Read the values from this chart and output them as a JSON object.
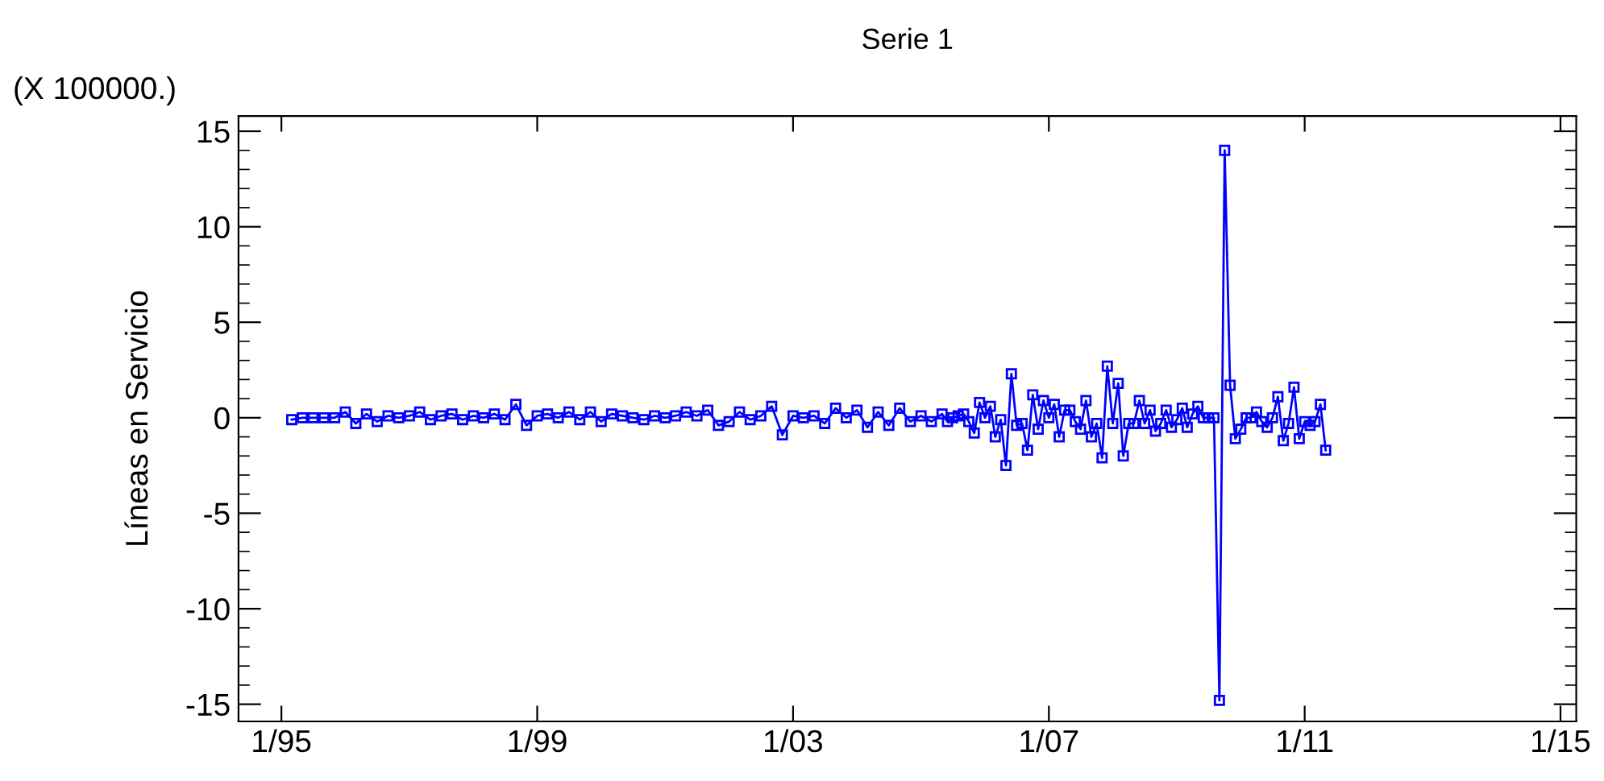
{
  "chart_data": {
    "type": "line",
    "title": "Serie 1",
    "ylabel": "Líneas en Servicio",
    "annotations": [
      "(X 100000.)"
    ],
    "x": [
      "1995-03",
      "1995-05",
      "1995-07",
      "1995-09",
      "1995-11",
      "1996-01",
      "1996-03",
      "1996-05",
      "1996-07",
      "1996-09",
      "1996-11",
      "1997-01",
      "1997-03",
      "1997-05",
      "1997-07",
      "1997-09",
      "1997-11",
      "1998-01",
      "1998-03",
      "1998-05",
      "1998-07",
      "1998-09",
      "1998-11",
      "1999-01",
      "1999-03",
      "1999-05",
      "1999-07",
      "1999-09",
      "1999-11",
      "2000-01",
      "2000-03",
      "2000-05",
      "2000-07",
      "2000-09",
      "2000-11",
      "2001-01",
      "2001-03",
      "2001-05",
      "2001-07",
      "2001-09",
      "2001-11",
      "2002-01",
      "2002-03",
      "2002-05",
      "2002-07",
      "2002-09",
      "2002-11",
      "2003-01",
      "2003-03",
      "2003-05",
      "2003-07",
      "2003-09",
      "2003-11",
      "2004-01",
      "2004-03",
      "2004-05",
      "2004-07",
      "2004-09",
      "2004-11",
      "2005-01",
      "2005-03",
      "2005-05",
      "2005-06",
      "2005-07",
      "2005-08",
      "2005-09",
      "2005-10",
      "2005-11",
      "2005-12",
      "2006-01",
      "2006-02",
      "2006-03",
      "2006-04",
      "2006-05",
      "2006-06",
      "2006-07",
      "2006-08",
      "2006-09",
      "2006-10",
      "2006-11",
      "2006-12",
      "2007-01",
      "2007-02",
      "2007-03",
      "2007-04",
      "2007-05",
      "2007-06",
      "2007-07",
      "2007-08",
      "2007-09",
      "2007-10",
      "2007-11",
      "2007-12",
      "2008-01",
      "2008-02",
      "2008-03",
      "2008-04",
      "2008-05",
      "2008-06",
      "2008-07",
      "2008-08",
      "2008-09",
      "2008-10",
      "2008-11",
      "2008-12",
      "2009-01",
      "2009-02",
      "2009-03",
      "2009-04",
      "2009-05",
      "2009-06",
      "2009-07",
      "2009-08",
      "2009-09",
      "2009-10",
      "2009-11",
      "2009-12",
      "2010-01",
      "2010-02",
      "2010-03",
      "2010-04",
      "2010-05",
      "2010-06",
      "2010-07",
      "2010-08",
      "2010-09",
      "2010-10",
      "2010-11",
      "2010-12",
      "2011-01",
      "2011-02",
      "2011-03",
      "2011-04",
      "2011-05"
    ],
    "series": [
      {
        "color": "#0000ff",
        "values": [
          -0.1,
          0.0,
          0.0,
          0.0,
          0.0,
          0.3,
          -0.3,
          0.2,
          -0.2,
          0.1,
          0.0,
          0.1,
          0.3,
          -0.1,
          0.1,
          0.2,
          -0.1,
          0.1,
          0.0,
          0.2,
          -0.1,
          0.7,
          -0.4,
          0.1,
          0.2,
          0.0,
          0.3,
          -0.1,
          0.3,
          -0.2,
          0.2,
          0.1,
          0.0,
          -0.1,
          0.1,
          0.0,
          0.1,
          0.3,
          0.1,
          0.4,
          -0.4,
          -0.2,
          0.3,
          -0.1,
          0.1,
          0.6,
          -0.9,
          0.1,
          0.0,
          0.1,
          -0.3,
          0.5,
          0.0,
          0.4,
          -0.5,
          0.3,
          -0.4,
          0.5,
          -0.2,
          0.1,
          -0.2,
          0.2,
          -0.2,
          0.0,
          0.1,
          0.2,
          -0.2,
          -0.8,
          0.8,
          0.0,
          0.6,
          -1.0,
          -0.1,
          -2.5,
          2.3,
          -0.4,
          -0.3,
          -1.7,
          1.2,
          -0.6,
          0.9,
          0.0,
          0.7,
          -1.0,
          0.4,
          0.4,
          -0.2,
          -0.6,
          0.9,
          -1.0,
          -0.3,
          -2.1,
          2.7,
          -0.3,
          1.8,
          -2.0,
          -0.3,
          -0.3,
          0.9,
          -0.3,
          0.4,
          -0.7,
          -0.3,
          0.4,
          -0.5,
          -0.1,
          0.5,
          -0.5,
          0.2,
          0.6,
          0.0,
          0.0,
          0.0,
          -14.8,
          14.0,
          1.7,
          -1.1,
          -0.6,
          0.0,
          0.0,
          0.3,
          -0.2,
          -0.5,
          0.0,
          1.1,
          -1.2,
          -0.3,
          1.6,
          -1.1,
          -0.2,
          -0.4,
          -0.2,
          0.7,
          -1.7
        ]
      }
    ],
    "xlim": [
      "1994-05",
      "2015-04"
    ],
    "xticks": [
      {
        "value": "1995-01",
        "label": "1/95"
      },
      {
        "value": "1999-01",
        "label": "1/99"
      },
      {
        "value": "2003-01",
        "label": "1/03"
      },
      {
        "value": "2007-01",
        "label": "1/07"
      },
      {
        "value": "2011-01",
        "label": "1/11"
      },
      {
        "value": "2015-01",
        "label": "1/15"
      }
    ],
    "ylim": [
      -15.9,
      15.8
    ],
    "yticks": [
      -15,
      -10,
      -5,
      0,
      5,
      10,
      15
    ],
    "marker": "square",
    "line_style": "solid",
    "grid": false,
    "legend": false
  }
}
